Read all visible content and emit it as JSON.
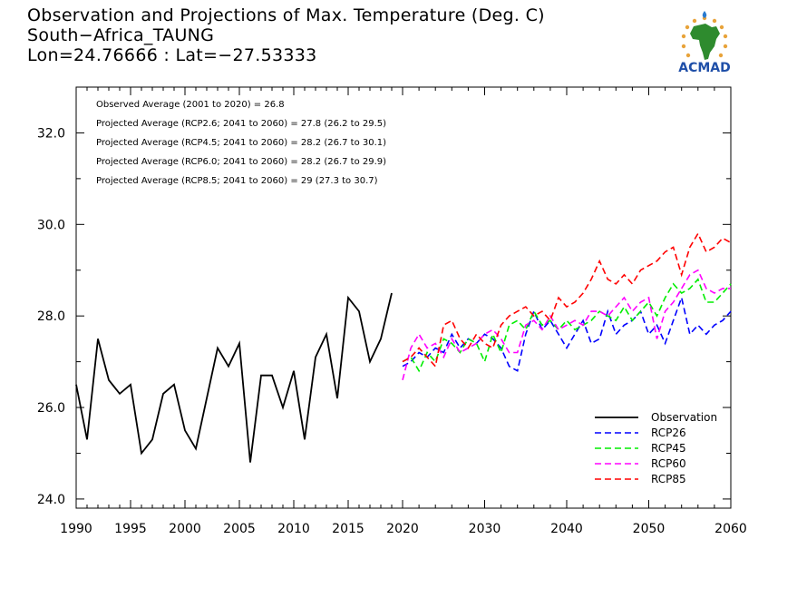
{
  "header": {
    "title_line1": "Observation and Projections of Max. Temperature (Deg. C)",
    "title_line2": "South−Africa_TAUNG",
    "title_line3": "Lon=24.76666 : Lat=−27.53333"
  },
  "logo": {
    "text": "ACMAD",
    "icon": "africa-map-icon"
  },
  "colors": {
    "observation": "#000000",
    "rcp26": "#0000ff",
    "rcp45": "#00ee00",
    "rcp60": "#ff00ff",
    "rcp85": "#ff0000"
  },
  "chart_data": {
    "type": "line",
    "xlim": [
      1990,
      2060
    ],
    "ylim": [
      23.8,
      33.0
    ],
    "x_ticks": [
      1990,
      1995,
      2000,
      2005,
      2010,
      2015,
      2020,
      2030,
      2040,
      2050,
      2060
    ],
    "y_ticks": [
      24.0,
      26.0,
      28.0,
      30.0,
      32.0
    ],
    "y_tick_labels": [
      "24.0",
      "26.0",
      "28.0",
      "30.0",
      "32.0"
    ],
    "grid": false,
    "annotations": [
      "Observed Average (2001 to 2020) = 26.8",
      "Projected Average (RCP2.6; 2041 to 2060) = 27.8 (26.2 to 29.5)",
      "Projected Average (RCP4.5; 2041 to 2060) = 28.2 (26.7 to 30.1)",
      "Projected Average (RCP6.0; 2041 to 2060) = 28.2 (26.7 to 29.9)",
      "Projected Average (RCP8.5; 2041 to 2060) = 29 (27.3 to 30.7)"
    ],
    "legend_position": "bottom-right",
    "series": [
      {
        "name": "Observation",
        "key": "observation",
        "dash": "solid",
        "x": [
          1990,
          1991,
          1992,
          1993,
          1994,
          1995,
          1996,
          1997,
          1998,
          1999,
          2000,
          2001,
          2002,
          2003,
          2004,
          2005,
          2006,
          2007,
          2008,
          2009,
          2010,
          2011,
          2012,
          2013,
          2014,
          2015,
          2016,
          2017,
          2018,
          2019
        ],
        "y": [
          26.5,
          25.3,
          27.5,
          26.6,
          26.3,
          26.5,
          25.0,
          25.3,
          26.3,
          26.5,
          25.5,
          25.1,
          26.2,
          27.3,
          26.9,
          27.4,
          24.8,
          26.7,
          26.7,
          26.0,
          26.8,
          25.3,
          27.1,
          27.6,
          26.2,
          28.4,
          28.1,
          27.0,
          27.5,
          28.5
        ]
      },
      {
        "name": "RCP26",
        "key": "rcp26",
        "dash": "dashed",
        "x": [
          2020,
          2021,
          2022,
          2023,
          2024,
          2025,
          2026,
          2027,
          2028,
          2029,
          2030,
          2031,
          2032,
          2033,
          2034,
          2035,
          2036,
          2037,
          2038,
          2039,
          2040,
          2041,
          2042,
          2043,
          2044,
          2045,
          2046,
          2047,
          2048,
          2049,
          2050,
          2051,
          2052,
          2053,
          2054,
          2055,
          2056,
          2057,
          2058,
          2059,
          2060
        ],
        "y": [
          26.9,
          27.0,
          27.2,
          27.1,
          27.3,
          27.2,
          27.6,
          27.3,
          27.5,
          27.4,
          27.6,
          27.5,
          27.3,
          26.9,
          26.8,
          27.6,
          28.1,
          27.7,
          27.9,
          27.6,
          27.3,
          27.6,
          27.9,
          27.4,
          27.5,
          28.1,
          27.6,
          27.8,
          27.9,
          28.1,
          27.6,
          27.8,
          27.4,
          27.9,
          28.4,
          27.6,
          27.8,
          27.6,
          27.8,
          27.9,
          28.1
        ]
      },
      {
        "name": "RCP45",
        "key": "rcp45",
        "dash": "dashed",
        "x": [
          2020,
          2021,
          2022,
          2023,
          2024,
          2025,
          2026,
          2027,
          2028,
          2029,
          2030,
          2031,
          2032,
          2033,
          2034,
          2035,
          2036,
          2037,
          2038,
          2039,
          2040,
          2041,
          2042,
          2043,
          2044,
          2045,
          2046,
          2047,
          2048,
          2049,
          2050,
          2051,
          2052,
          2053,
          2054,
          2055,
          2056,
          2057,
          2058,
          2059,
          2060
        ],
        "y": [
          27.0,
          27.1,
          26.8,
          27.2,
          27.0,
          27.5,
          27.4,
          27.2,
          27.5,
          27.4,
          27.0,
          27.6,
          27.2,
          27.8,
          27.9,
          27.7,
          28.1,
          27.8,
          27.9,
          27.7,
          27.9,
          27.7,
          27.8,
          27.9,
          28.1,
          28.0,
          27.9,
          28.2,
          27.9,
          28.1,
          28.3,
          28.0,
          28.4,
          28.7,
          28.5,
          28.6,
          28.8,
          28.3,
          28.3,
          28.5,
          28.7
        ]
      },
      {
        "name": "RCP60",
        "key": "rcp60",
        "dash": "dashed",
        "x": [
          2020,
          2021,
          2022,
          2023,
          2024,
          2025,
          2026,
          2027,
          2028,
          2029,
          2030,
          2031,
          2032,
          2033,
          2034,
          2035,
          2036,
          2037,
          2038,
          2039,
          2040,
          2041,
          2042,
          2043,
          2044,
          2045,
          2046,
          2047,
          2048,
          2049,
          2050,
          2051,
          2052,
          2053,
          2054,
          2055,
          2056,
          2057,
          2058,
          2059,
          2060
        ],
        "y": [
          26.6,
          27.3,
          27.6,
          27.3,
          27.4,
          27.1,
          27.5,
          27.2,
          27.3,
          27.4,
          27.6,
          27.7,
          27.5,
          27.2,
          27.2,
          27.8,
          27.9,
          27.7,
          28.0,
          27.7,
          27.8,
          27.9,
          27.8,
          28.1,
          28.1,
          28.0,
          28.2,
          28.4,
          28.1,
          28.3,
          28.4,
          27.5,
          28.1,
          28.3,
          28.6,
          28.9,
          29.0,
          28.6,
          28.5,
          28.6,
          28.6
        ]
      },
      {
        "name": "RCP85",
        "key": "rcp85",
        "dash": "dashed",
        "x": [
          2020,
          2021,
          2022,
          2023,
          2024,
          2025,
          2026,
          2027,
          2028,
          2029,
          2030,
          2031,
          2032,
          2033,
          2034,
          2035,
          2036,
          2037,
          2038,
          2039,
          2040,
          2041,
          2042,
          2043,
          2044,
          2045,
          2046,
          2047,
          2048,
          2049,
          2050,
          2051,
          2052,
          2053,
          2054,
          2055,
          2056,
          2057,
          2058,
          2059,
          2060
        ],
        "y": [
          27.0,
          27.1,
          27.3,
          27.1,
          26.9,
          27.8,
          27.9,
          27.5,
          27.3,
          27.6,
          27.4,
          27.3,
          27.8,
          28.0,
          28.1,
          28.2,
          28.0,
          28.1,
          27.9,
          28.4,
          28.2,
          28.3,
          28.5,
          28.8,
          29.2,
          28.8,
          28.7,
          28.9,
          28.7,
          29.0,
          29.1,
          29.2,
          29.4,
          29.5,
          28.9,
          29.5,
          29.8,
          29.4,
          29.5,
          29.7,
          29.6
        ]
      }
    ]
  }
}
